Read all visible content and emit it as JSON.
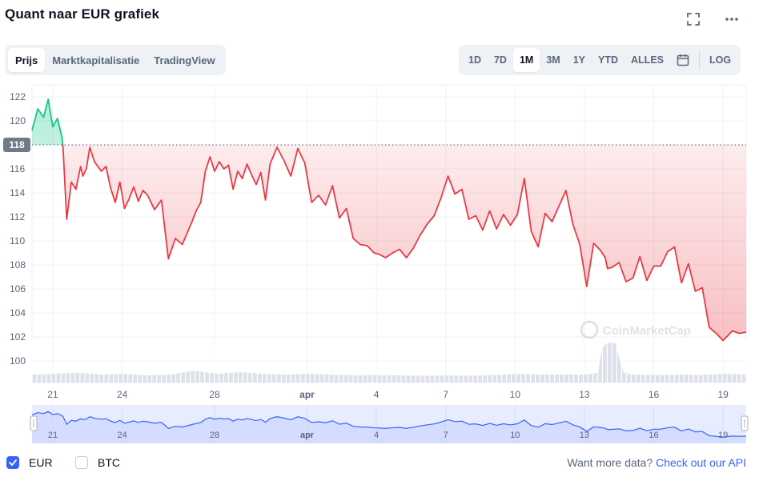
{
  "header": {
    "title": "Quant naar EUR grafiek"
  },
  "icons": {
    "fullscreen": "fullscreen-icon",
    "more": "more-horizontal-icon",
    "calendar": "calendar-icon",
    "check": "check-icon"
  },
  "view_tabs": [
    {
      "label": "Prijs",
      "active": true
    },
    {
      "label": "Marktkapitalisatie",
      "active": false
    },
    {
      "label": "TradingView",
      "active": false
    }
  ],
  "range_tabs": [
    {
      "label": "1D",
      "active": false
    },
    {
      "label": "7D",
      "active": false
    },
    {
      "label": "1M",
      "active": true
    },
    {
      "label": "3M",
      "active": false
    },
    {
      "label": "1Y",
      "active": false
    },
    {
      "label": "YTD",
      "active": false
    },
    {
      "label": "ALLES",
      "active": false
    }
  ],
  "log_label": "LOG",
  "watermark": "CoinMarketCap",
  "legend": [
    {
      "label": "EUR",
      "checked": true
    },
    {
      "label": "BTC",
      "checked": false
    }
  ],
  "api": {
    "text": "Want more data?",
    "link": "Check out our API"
  },
  "colors": {
    "up": "#16c784",
    "down": "#ea3943",
    "accent": "#3861fb",
    "grid": "#eff2f5",
    "text_muted": "#58667e"
  },
  "chart_data": {
    "type": "line",
    "ylim": [
      99,
      123
    ],
    "y_ticks": [
      100,
      102,
      104,
      106,
      108,
      110,
      112,
      114,
      116,
      118,
      120,
      122
    ],
    "x_ticks": [
      "21",
      "24",
      "28",
      "apr",
      "4",
      "7",
      "10",
      "13",
      "16",
      "19"
    ],
    "x_tick_pos": [
      0.9,
      3.9,
      7.9,
      11.9,
      14.9,
      17.9,
      20.9,
      23.9,
      26.9,
      29.9
    ],
    "xlim": [
      0,
      30.9
    ],
    "baseline": 118,
    "grid": true,
    "series": [
      {
        "x": [
          0,
          0.25,
          0.5,
          0.7,
          0.9,
          1.1,
          1.3,
          1.35,
          1.5,
          1.7,
          1.9,
          2.1,
          2.2,
          2.35,
          2.5,
          2.7,
          3.0,
          3.2,
          3.4,
          3.6,
          3.8,
          4.0,
          4.2,
          4.4,
          4.6,
          4.8,
          5.0,
          5.3,
          5.6,
          5.9,
          6.2,
          6.5,
          6.7,
          6.9,
          7.1,
          7.3,
          7.5,
          7.7,
          7.9,
          8.1,
          8.3,
          8.5,
          8.7,
          8.9,
          9.1,
          9.3,
          9.5,
          9.7,
          9.9,
          10.1,
          10.3,
          10.6,
          10.9,
          11.2,
          11.5,
          11.8,
          12.1,
          12.4,
          12.7,
          13.0,
          13.3,
          13.6,
          13.9,
          14.2,
          14.5,
          14.8,
          15.0,
          15.3,
          15.6,
          15.9,
          16.2,
          16.5,
          16.8,
          17.1,
          17.4,
          17.7,
          18.0,
          18.3,
          18.6,
          18.9,
          19.2,
          19.5,
          19.8,
          20.1,
          20.4,
          20.7,
          21.0,
          21.3,
          21.6,
          21.9,
          22.2,
          22.5,
          22.8,
          23.1,
          23.4,
          23.7,
          24.0,
          24.3,
          24.6,
          24.8,
          24.9,
          25.1,
          25.4,
          25.7,
          26.0,
          26.3,
          26.6,
          26.9,
          27.2,
          27.5,
          27.8,
          28.1,
          28.4,
          28.7,
          29.0,
          29.3,
          29.6,
          29.9,
          30.1,
          30.3,
          30.6,
          30.9
        ],
        "y": [
          119.2,
          121.0,
          120.3,
          121.8,
          119.5,
          120.2,
          118.6,
          117.5,
          111.8,
          114.9,
          114.3,
          116.2,
          115.4,
          116.0,
          117.8,
          116.6,
          115.8,
          116.2,
          114.4,
          113.2,
          114.9,
          112.7,
          113.5,
          114.5,
          113.3,
          114.2,
          113.8,
          112.6,
          113.4,
          108.5,
          110.2,
          109.7,
          110.6,
          111.5,
          112.5,
          113.2,
          115.8,
          117.0,
          115.8,
          116.6,
          116.0,
          116.3,
          114.3,
          115.8,
          115.2,
          116.4,
          115.5,
          114.7,
          115.7,
          113.4,
          116.4,
          117.8,
          116.7,
          115.4,
          117.7,
          116.5,
          113.2,
          113.8,
          113.0,
          114.6,
          111.9,
          112.7,
          110.2,
          109.7,
          109.6,
          109.0,
          108.9,
          108.6,
          109.0,
          109.3,
          108.6,
          109.4,
          110.5,
          111.4,
          112.1,
          113.6,
          115.4,
          113.9,
          114.3,
          111.8,
          112.1,
          110.9,
          112.5,
          111.0,
          112.2,
          111.3,
          112.2,
          115.2,
          110.8,
          109.5,
          112.3,
          111.6,
          112.9,
          114.2,
          111.4,
          109.7,
          106.2,
          109.8,
          109.2,
          108.6,
          107.7,
          107.8,
          108.2,
          106.6,
          106.9,
          108.7,
          106.7,
          107.9,
          107.9,
          109.1,
          109.5,
          106.5,
          108.1,
          105.8,
          106.1,
          102.8,
          102.3,
          101.7,
          102.1,
          102.5,
          102.3,
          102.4
        ]
      }
    ],
    "volume": [
      {
        "x": 0.0,
        "v": 0.2
      },
      {
        "x": 1.0,
        "v": 0.22
      },
      {
        "x": 2.0,
        "v": 0.25
      },
      {
        "x": 3.0,
        "v": 0.2
      },
      {
        "x": 4.0,
        "v": 0.22
      },
      {
        "x": 5.0,
        "v": 0.18
      },
      {
        "x": 6.0,
        "v": 0.2
      },
      {
        "x": 7.0,
        "v": 0.3
      },
      {
        "x": 8.0,
        "v": 0.22
      },
      {
        "x": 9.0,
        "v": 0.26
      },
      {
        "x": 10.0,
        "v": 0.22
      },
      {
        "x": 11.0,
        "v": 0.2
      },
      {
        "x": 12.0,
        "v": 0.22
      },
      {
        "x": 13.0,
        "v": 0.2
      },
      {
        "x": 14.0,
        "v": 0.18
      },
      {
        "x": 15.0,
        "v": 0.19
      },
      {
        "x": 16.0,
        "v": 0.18
      },
      {
        "x": 17.0,
        "v": 0.17
      },
      {
        "x": 18.0,
        "v": 0.18
      },
      {
        "x": 19.0,
        "v": 0.17
      },
      {
        "x": 20.0,
        "v": 0.19
      },
      {
        "x": 21.0,
        "v": 0.22
      },
      {
        "x": 22.0,
        "v": 0.2
      },
      {
        "x": 23.0,
        "v": 0.2
      },
      {
        "x": 24.0,
        "v": 0.2
      },
      {
        "x": 24.5,
        "v": 0.25
      },
      {
        "x": 24.65,
        "v": 0.85
      },
      {
        "x": 24.85,
        "v": 0.98
      },
      {
        "x": 25.05,
        "v": 1.0
      },
      {
        "x": 25.25,
        "v": 0.98
      },
      {
        "x": 25.4,
        "v": 0.6
      },
      {
        "x": 25.6,
        "v": 0.25
      },
      {
        "x": 26.0,
        "v": 0.2
      },
      {
        "x": 27.0,
        "v": 0.19
      },
      {
        "x": 28.0,
        "v": 0.2
      },
      {
        "x": 29.0,
        "v": 0.19
      },
      {
        "x": 30.0,
        "v": 0.22
      },
      {
        "x": 30.9,
        "v": 0.2
      }
    ]
  }
}
